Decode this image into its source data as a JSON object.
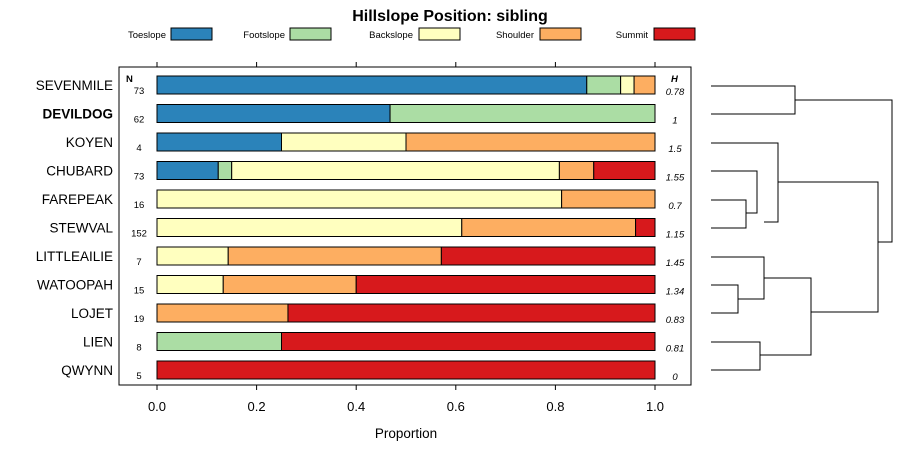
{
  "chart_data": {
    "type": "bar",
    "orientation": "horizontal",
    "stacked": true,
    "title": "Hillslope Position: sibling",
    "xlabel": "Proportion",
    "ylabel": "",
    "xlim": [
      0,
      1
    ],
    "xticks": [
      "0.0",
      "0.2",
      "0.4",
      "0.6",
      "0.8",
      "1.0"
    ],
    "tick_values": [
      0,
      0.2,
      0.4,
      0.6,
      0.8,
      1.0
    ],
    "n_header": "N",
    "h_header": "H",
    "legend_placement": "top",
    "series": [
      {
        "name": "Toeslope",
        "color": "#2b83ba"
      },
      {
        "name": "Footslope",
        "color": "#abdda4"
      },
      {
        "name": "Backslope",
        "color": "#ffffbf"
      },
      {
        "name": "Shoulder",
        "color": "#fdae61"
      },
      {
        "name": "Summit",
        "color": "#d7191c"
      }
    ],
    "categories": [
      {
        "label": "SEVENMILE",
        "bold": false,
        "n": "73",
        "h": "0.78",
        "values": [
          0.863,
          0.068,
          0.027,
          0.042,
          0
        ]
      },
      {
        "label": "DEVILDOG",
        "bold": true,
        "n": "62",
        "h": "1",
        "values": [
          0.468,
          0.532,
          0,
          0,
          0
        ]
      },
      {
        "label": "KOYEN",
        "bold": false,
        "n": "4",
        "h": "1.5",
        "values": [
          0.25,
          0,
          0.25,
          0.5,
          0
        ]
      },
      {
        "label": "CHUBARD",
        "bold": false,
        "n": "73",
        "h": "1.55",
        "values": [
          0.123,
          0.027,
          0.658,
          0.069,
          0.123
        ]
      },
      {
        "label": "FAREPEAK",
        "bold": false,
        "n": "16",
        "h": "0.7",
        "values": [
          0,
          0,
          0.8125,
          0.1875,
          0
        ]
      },
      {
        "label": "STEWVAL",
        "bold": false,
        "n": "152",
        "h": "1.15",
        "values": [
          0,
          0,
          0.612,
          0.349,
          0.039
        ]
      },
      {
        "label": "LITTLEAILIE",
        "bold": false,
        "n": "7",
        "h": "1.45",
        "values": [
          0,
          0,
          0.143,
          0.428,
          0.429
        ]
      },
      {
        "label": "WATOOPAH",
        "bold": false,
        "n": "15",
        "h": "1.34",
        "values": [
          0,
          0,
          0.133,
          0.267,
          0.6
        ]
      },
      {
        "label": "LOJET",
        "bold": false,
        "n": "19",
        "h": "0.83",
        "values": [
          0,
          0,
          0,
          0.263,
          0.737
        ]
      },
      {
        "label": "LIEN",
        "bold": false,
        "n": "8",
        "h": "0.81",
        "values": [
          0,
          0.25,
          0,
          0,
          0.75
        ]
      },
      {
        "label": "QWYNN",
        "bold": false,
        "n": "5",
        "h": "0",
        "values": [
          0,
          0,
          0,
          0,
          1
        ]
      }
    ]
  }
}
